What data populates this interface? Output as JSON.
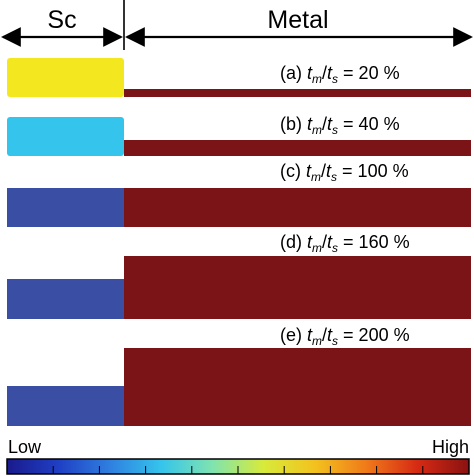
{
  "header": {
    "sc_label": "Sc",
    "metal_label": "Metal"
  },
  "panels": [
    {
      "prefix": "(a) ",
      "tm": "t",
      "tm_sub": "m",
      "sep": "/",
      "ts": "t",
      "ts_sub": "s",
      "value": " = 20 %",
      "sc_color": "#f3e81f",
      "metal_color": "#7b1416"
    },
    {
      "prefix": "(b) ",
      "tm": "t",
      "tm_sub": "m",
      "sep": "/",
      "ts": "t",
      "ts_sub": "s",
      "value": " = 40 %",
      "sc_color": "#35c4ec",
      "metal_color": "#7b1416"
    },
    {
      "prefix": "(c) ",
      "tm": "t",
      "tm_sub": "m",
      "sep": "/",
      "ts": "t",
      "ts_sub": "s",
      "value": " = 100 %",
      "sc_color": "#3a4fa3",
      "metal_color": "#7b1416"
    },
    {
      "prefix": "(d) ",
      "tm": "t",
      "tm_sub": "m",
      "sep": "/",
      "ts": "t",
      "ts_sub": "s",
      "value": " = 160 %",
      "sc_color": "#3a4fa3",
      "metal_color": "#7b1416"
    },
    {
      "prefix": "(e) ",
      "tm": "t",
      "tm_sub": "m",
      "sep": "/",
      "ts": "t",
      "ts_sub": "s",
      "value": " = 200 %",
      "sc_color": "#3a4fa3",
      "metal_color": "#7b1416"
    }
  ],
  "colorbar": {
    "low_label": "Low",
    "high_label": "High",
    "colors": [
      "#1a1a8c",
      "#1f3fc4",
      "#2f7fe0",
      "#35c4ec",
      "#7fe3b0",
      "#d8ea3a",
      "#f3c21f",
      "#f07a1a",
      "#d62a14",
      "#8a1212"
    ]
  }
}
